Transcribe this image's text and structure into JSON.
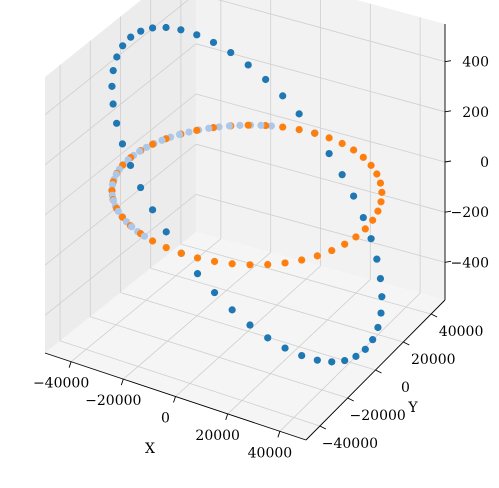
{
  "chart_data": {
    "type": "scatter",
    "projection": "3d",
    "title": "",
    "xlabel": "X",
    "ylabel": "Y",
    "zlabel": "",
    "xlim": [
      -50000,
      50000
    ],
    "ylim": [
      -50000,
      50000
    ],
    "zlim": [
      -550,
      550
    ],
    "xticks": [
      -40000,
      -20000,
      0,
      20000,
      40000
    ],
    "yticks": [
      -40000,
      -20000,
      0,
      20000,
      40000
    ],
    "zticks": [
      -400,
      -200,
      0,
      200,
      400
    ],
    "xtick_labels": [
      "−40000",
      "−20000",
      "0",
      "20000",
      "40000"
    ],
    "ytick_labels": [
      "−40000",
      "−20000",
      "0",
      "20000",
      "40000"
    ],
    "ztick_labels": [
      "−400",
      "−200",
      "0",
      "200",
      "400"
    ],
    "grid": true,
    "legend": "none",
    "colors": {
      "pane": "#f2f2f2",
      "grid": "#cfcfcf",
      "axis_line": "#000000",
      "series_1": "#1f77b4",
      "series_2": "#ff7f0e",
      "series_3": "#aec7e8"
    },
    "series": [
      {
        "marker_color": "#1f77b4",
        "description_points": 48,
        "shape": "tilted-circle",
        "radius": 46000,
        "z_amplitude": 480,
        "z_peak_angle_deg": 180
      },
      {
        "marker_color": "#ff7f0e",
        "description_points": 48,
        "shape": "flat-circle",
        "radius": 46000,
        "z_amplitude": 0,
        "z_peak_angle_deg": 0
      },
      {
        "marker_color": "#aec7e8",
        "description_points": 32,
        "shape": "flat-arc",
        "radius": 46000,
        "z_amplitude": 0,
        "z_peak_angle_deg": 0,
        "arc_deg": [
          110,
          250
        ]
      }
    ]
  }
}
